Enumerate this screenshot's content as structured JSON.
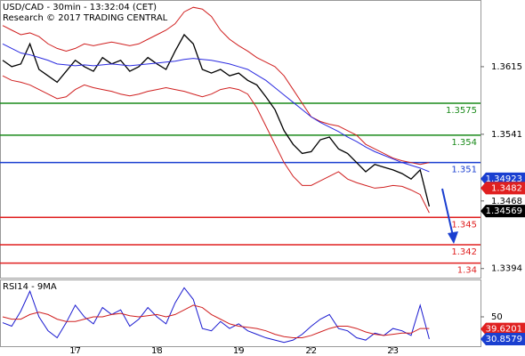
{
  "chart_data": [
    {
      "type": "line",
      "title": "USD/CAD - 30min - 13:32:04 (CET)",
      "subtitle": "Research © 2017 TRADING CENTRAL",
      "categories": [
        null,
        null,
        null,
        null,
        null,
        null,
        null,
        null,
        "17",
        null,
        null,
        null,
        null,
        null,
        null,
        null,
        null,
        "18",
        null,
        null,
        null,
        null,
        null,
        null,
        null,
        null,
        "19",
        null,
        null,
        null,
        null,
        null,
        null,
        null,
        "22",
        null,
        null,
        null,
        null,
        null,
        null,
        null,
        null,
        "23",
        null,
        null,
        null,
        null
      ],
      "series": [
        {
          "color": "#000000",
          "values": [
            1.3622,
            1.3615,
            1.3618,
            1.364,
            1.3612,
            1.3605,
            1.3598,
            1.361,
            1.3622,
            1.3615,
            1.361,
            1.3625,
            1.3618,
            1.3622,
            1.361,
            1.3615,
            1.3625,
            1.3618,
            1.3612,
            1.3632,
            1.365,
            1.364,
            1.3612,
            1.3608,
            1.3612,
            1.3605,
            1.3608,
            1.36,
            1.3595,
            1.3582,
            1.3568,
            1.3545,
            1.353,
            1.352,
            1.3522,
            1.3535,
            1.3538,
            1.3525,
            1.352,
            1.351,
            1.35,
            1.3508,
            1.3505,
            1.3502,
            1.3498,
            1.3492,
            1.3502,
            1.3462
          ]
        },
        {
          "color": "#d02020",
          "values": [
            1.366,
            1.3655,
            1.365,
            1.3652,
            1.3648,
            1.364,
            1.3635,
            1.3632,
            1.3635,
            1.364,
            1.3638,
            1.364,
            1.3642,
            1.364,
            1.3638,
            1.364,
            1.3645,
            1.365,
            1.3655,
            1.3662,
            1.3675,
            1.368,
            1.3678,
            1.367,
            1.3655,
            1.3645,
            1.3638,
            1.3632,
            1.3625,
            1.362,
            1.3615,
            1.3605,
            1.359,
            1.3575,
            1.356,
            1.3555,
            1.3552,
            1.355,
            1.3545,
            1.354,
            1.353,
            1.3525,
            1.352,
            1.3515,
            1.3512,
            1.351,
            1.3508,
            1.351
          ]
        },
        {
          "color": "#d02020",
          "values": [
            1.3605,
            1.36,
            1.3598,
            1.3595,
            1.359,
            1.3585,
            1.358,
            1.3582,
            1.359,
            1.3595,
            1.3592,
            1.359,
            1.3588,
            1.3585,
            1.3583,
            1.3585,
            1.3588,
            1.359,
            1.3592,
            1.359,
            1.3588,
            1.3585,
            1.3582,
            1.3585,
            1.359,
            1.3592,
            1.359,
            1.3585,
            1.357,
            1.355,
            1.353,
            1.351,
            1.3495,
            1.3485,
            1.3485,
            1.349,
            1.3495,
            1.35,
            1.3492,
            1.3488,
            1.3485,
            1.3482,
            1.3483,
            1.3485,
            1.3484,
            1.348,
            1.3475,
            1.3455
          ]
        },
        {
          "color": "#2a2ae0",
          "values": [
            1.364,
            1.3635,
            1.363,
            1.3628,
            1.3625,
            1.3622,
            1.3618,
            1.3617,
            1.3616,
            1.3617,
            1.3616,
            1.3617,
            1.3618,
            1.3617,
            1.3616,
            1.3617,
            1.3618,
            1.3619,
            1.362,
            1.3621,
            1.3623,
            1.3624,
            1.3623,
            1.3622,
            1.362,
            1.3618,
            1.3615,
            1.3612,
            1.3606,
            1.36,
            1.3592,
            1.3584,
            1.3576,
            1.3568,
            1.356,
            1.3554,
            1.3549,
            1.3544,
            1.3538,
            1.3533,
            1.3527,
            1.3522,
            1.3518,
            1.3514,
            1.351,
            1.3507,
            1.3504,
            1.35
          ]
        }
      ],
      "ylim": [
        1.3384,
        1.3688
      ],
      "yticks": [
        1.3615,
        1.3541,
        1.3468,
        1.3394
      ],
      "levels": [
        {
          "value": 1.3575,
          "color": "#1a8a1a"
        },
        {
          "value": 1.354,
          "color": "#1a8a1a"
        },
        {
          "value": 1.351,
          "color": "#1a3fd0"
        },
        {
          "value": 1.345,
          "color": "#e02020"
        },
        {
          "value": 1.342,
          "color": "#e02020"
        },
        {
          "value": 1.34,
          "color": "#e02020"
        }
      ],
      "price_tags": [
        {
          "value": 1.34923,
          "color": "#1a3fd0"
        },
        {
          "value": 1.3482,
          "color": "#e02020"
        },
        {
          "value": 1.34569,
          "color": "#000000"
        }
      ]
    },
    {
      "type": "line",
      "title": "RSI14 - 9MA",
      "series": [
        {
          "color": "#1a1ad0",
          "values": [
            45,
            42,
            55,
            72,
            50,
            38,
            32,
            45,
            60,
            50,
            44,
            58,
            52,
            56,
            42,
            48,
            58,
            50,
            44,
            62,
            75,
            65,
            40,
            38,
            46,
            40,
            44,
            38,
            35,
            32,
            30,
            28,
            30,
            35,
            42,
            48,
            52,
            40,
            38,
            32,
            30,
            36,
            34,
            40,
            38,
            34,
            60,
            31
          ]
        },
        {
          "color": "#d02020",
          "values": [
            50,
            48,
            48,
            52,
            54,
            52,
            48,
            46,
            46,
            48,
            50,
            50,
            52,
            53,
            51,
            50,
            51,
            52,
            50,
            52,
            56,
            60,
            58,
            52,
            48,
            44,
            42,
            41,
            40,
            38,
            35,
            33,
            32,
            32,
            34,
            37,
            40,
            42,
            42,
            40,
            37,
            35,
            34,
            35,
            36,
            36,
            40,
            40
          ]
        }
      ],
      "ylim": [
        24,
        80.6
      ],
      "yticks": [
        50
      ],
      "price_tags": [
        {
          "value": 39.6201,
          "color": "#e02020"
        },
        {
          "value": 30.8579,
          "color": "#1a3fd0"
        }
      ]
    }
  ]
}
